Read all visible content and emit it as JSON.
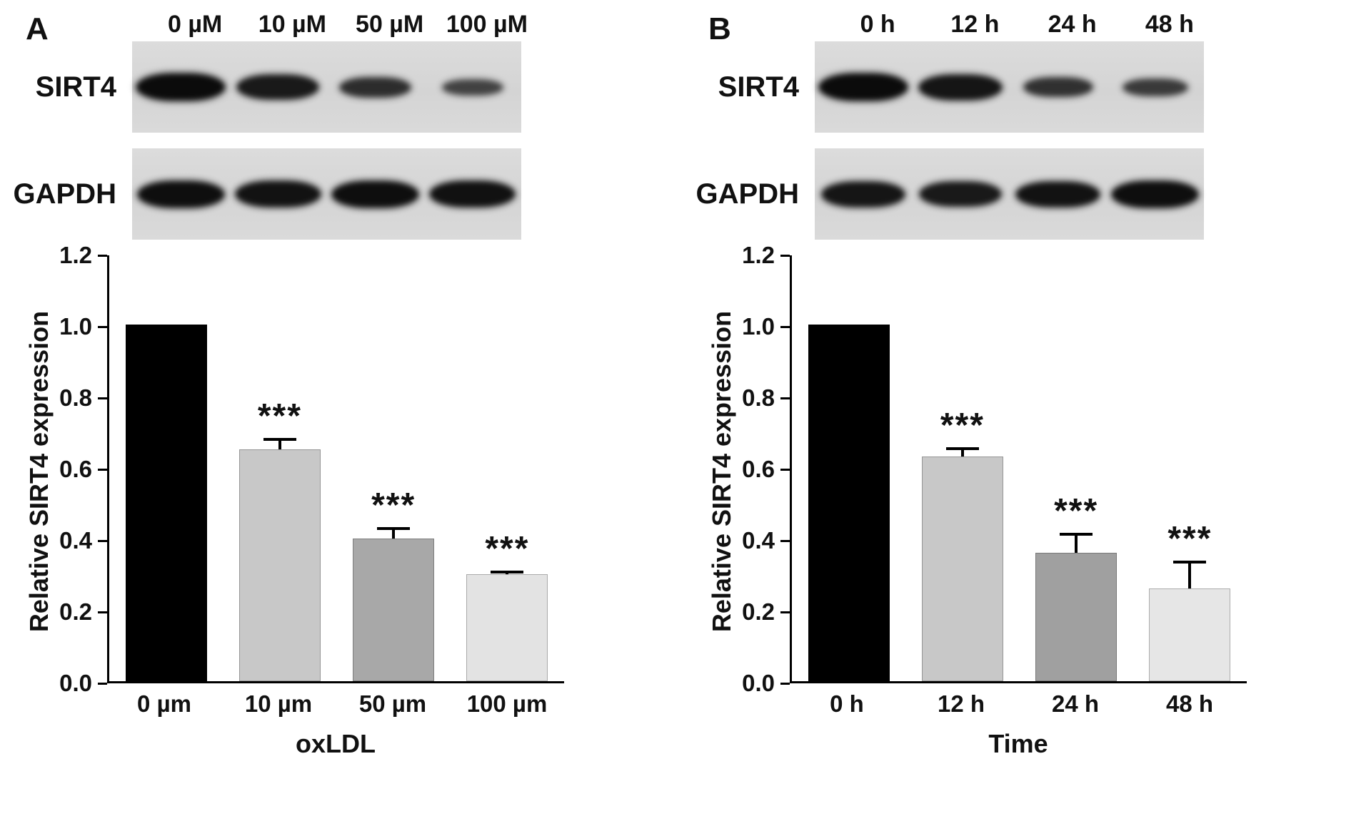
{
  "figure": {
    "panels": [
      {
        "letter": "A",
        "blot": {
          "lane_labels": [
            "0 µM",
            "10 µM",
            "50 µM",
            "100 µM"
          ],
          "rows": [
            {
              "label": "SIRT4",
              "band_intensities": [
                1.0,
                0.85,
                0.62,
                0.4
              ]
            },
            {
              "label": "GAPDH",
              "band_intensities": [
                0.95,
                0.92,
                0.95,
                0.93
              ]
            }
          ]
        }
      },
      {
        "letter": "B",
        "blot": {
          "lane_labels": [
            "0 h",
            "12 h",
            "24 h",
            "48 h"
          ],
          "rows": [
            {
              "label": "SIRT4",
              "band_intensities": [
                1.0,
                0.88,
                0.58,
                0.48
              ]
            },
            {
              "label": "GAPDH",
              "band_intensities": [
                0.88,
                0.85,
                0.9,
                0.95
              ]
            }
          ]
        }
      }
    ]
  },
  "chart_data": [
    {
      "type": "bar",
      "categories": [
        "0 µm",
        "10 µm",
        "50 µm",
        "100 µm"
      ],
      "values": [
        1.0,
        0.65,
        0.4,
        0.3
      ],
      "errors": [
        0,
        0.035,
        0.035,
        0.012
      ],
      "significance": [
        "",
        "***",
        "***",
        "***"
      ],
      "bar_colors": [
        "#000000",
        "#c8c8c8",
        "#a8a8a8",
        "#e3e3e3"
      ],
      "title": "",
      "xlabel": "oxLDL",
      "ylabel": "Relative SIRT4 expression",
      "ylim": [
        0,
        1.2
      ],
      "yticks": [
        0,
        0.2,
        0.4,
        0.6,
        0.8,
        1.0,
        1.2
      ],
      "grid": false,
      "legend": false
    },
    {
      "type": "bar",
      "categories": [
        "0 h",
        "12 h",
        "24 h",
        "48 h"
      ],
      "values": [
        1.0,
        0.63,
        0.36,
        0.26
      ],
      "errors": [
        0,
        0.028,
        0.058,
        0.08
      ],
      "significance": [
        "",
        "***",
        "***",
        "***"
      ],
      "bar_colors": [
        "#000000",
        "#c8c8c8",
        "#a0a0a0",
        "#e6e6e6"
      ],
      "title": "",
      "xlabel": "Time",
      "ylabel": "Relative SIRT4 expression",
      "ylim": [
        0,
        1.2
      ],
      "yticks": [
        0,
        0.2,
        0.4,
        0.6,
        0.8,
        1.0,
        1.2
      ],
      "grid": false,
      "legend": false
    }
  ]
}
